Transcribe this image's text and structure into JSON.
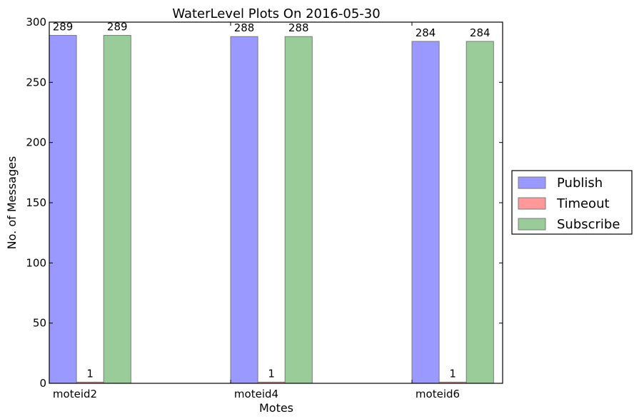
{
  "chart_data": {
    "type": "bar",
    "title": "WaterLevel Plots On 2016-05-30",
    "xlabel": "Motes",
    "ylabel": "No. of Messages",
    "categories": [
      "moteid2",
      "moteid4",
      "moteid6"
    ],
    "series": [
      {
        "name": "Publish",
        "values": [
          289,
          288,
          284
        ],
        "color": "#9999ff"
      },
      {
        "name": "Timeout",
        "values": [
          1,
          1,
          1
        ],
        "color": "#ff9999"
      },
      {
        "name": "Subscribe",
        "values": [
          289,
          288,
          284
        ],
        "color": "#99cc99"
      }
    ],
    "ylim": [
      0,
      300
    ],
    "yticks": [
      0,
      50,
      100,
      150,
      200,
      250,
      300
    ],
    "grid": false,
    "legend": "outside-right"
  }
}
